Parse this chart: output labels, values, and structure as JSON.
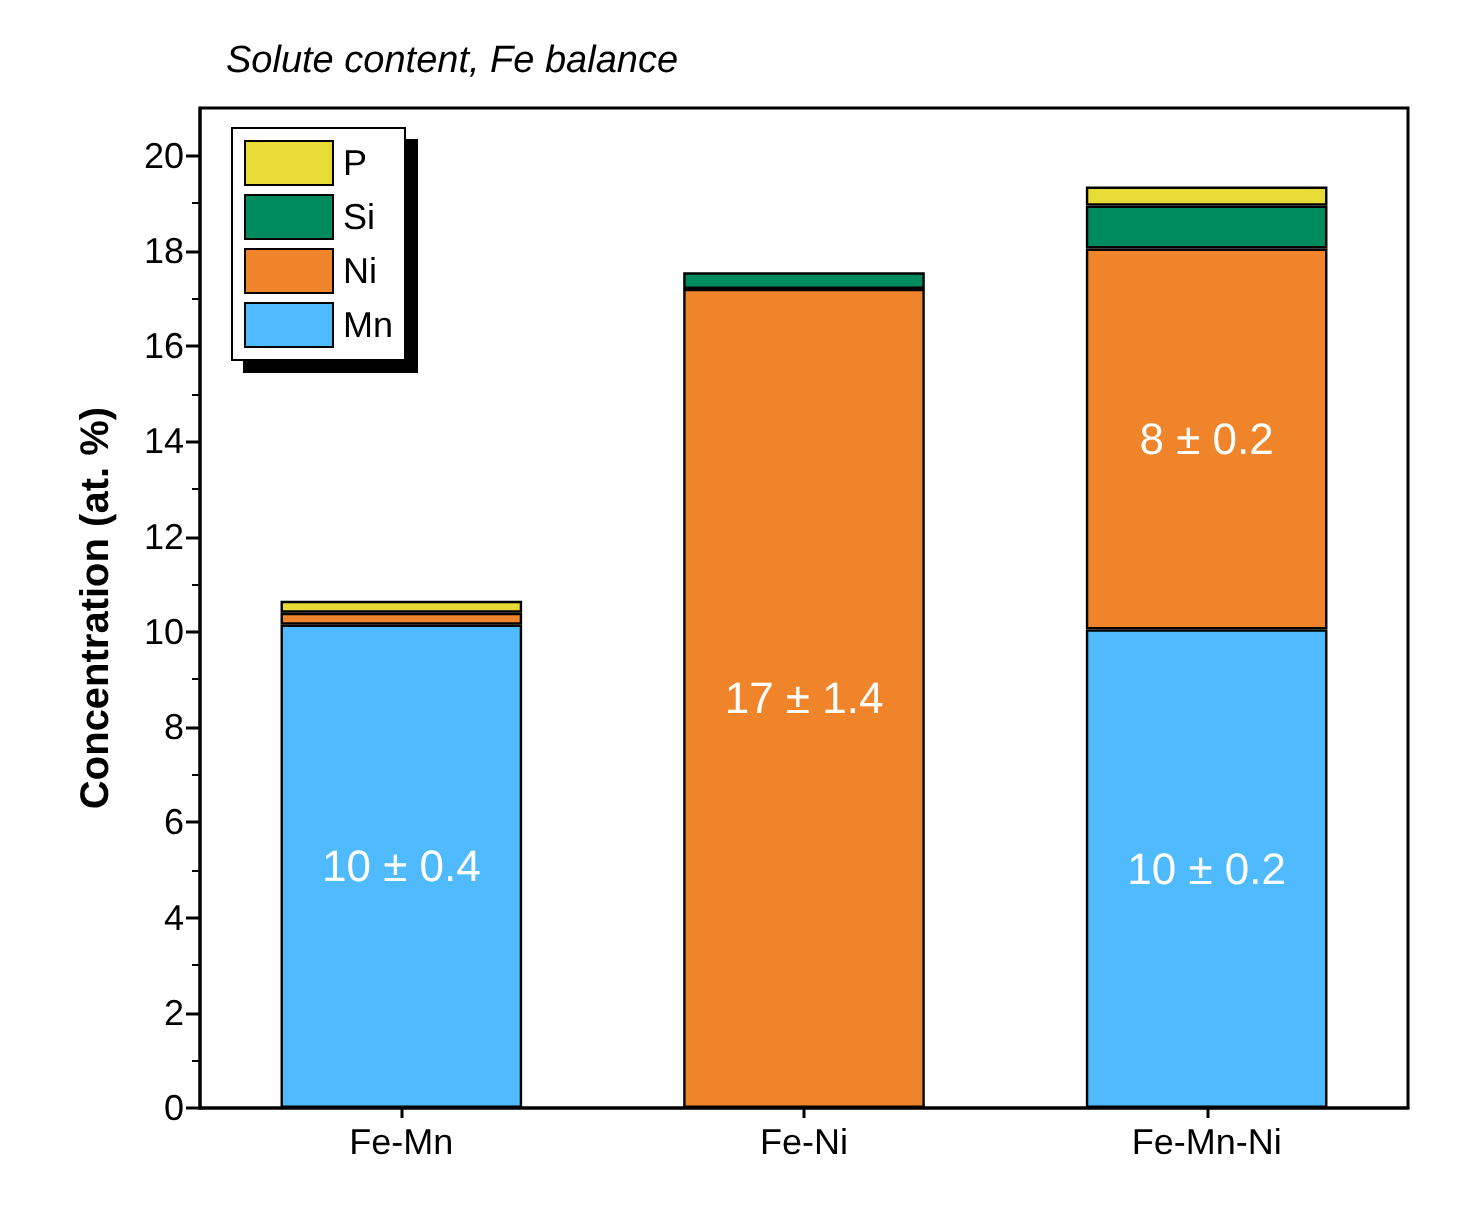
{
  "chart_data": {
    "type": "bar",
    "title": "Solute content, Fe balance",
    "ylabel": "Concentration (at. %)",
    "categories": [
      "Fe-Mn",
      "Fe-Ni",
      "Fe-Mn-Ni"
    ],
    "stacked": true,
    "series": [
      {
        "name": "Mn",
        "color": "#4fbafe",
        "values": [
          10.15,
          0,
          10.05
        ],
        "value_labels": [
          "10 ± 0.4",
          null,
          "10 ± 0.2"
        ]
      },
      {
        "name": "Ni",
        "color": "#f0842a",
        "values": [
          0.25,
          17.2,
          8.0
        ],
        "value_labels": [
          null,
          "17 ± 1.4",
          "8 ± 0.2"
        ]
      },
      {
        "name": "Si",
        "color": "#008b5e",
        "values": [
          0,
          0.35,
          0.9
        ]
      },
      {
        "name": "P",
        "color": "#e6dc35",
        "values": [
          0.25,
          0,
          0.4
        ]
      }
    ],
    "ylim": [
      0,
      21
    ],
    "yticks": [
      0,
      2,
      4,
      6,
      8,
      10,
      12,
      14,
      16,
      18,
      20
    ],
    "grid": false,
    "legend": "top left"
  }
}
